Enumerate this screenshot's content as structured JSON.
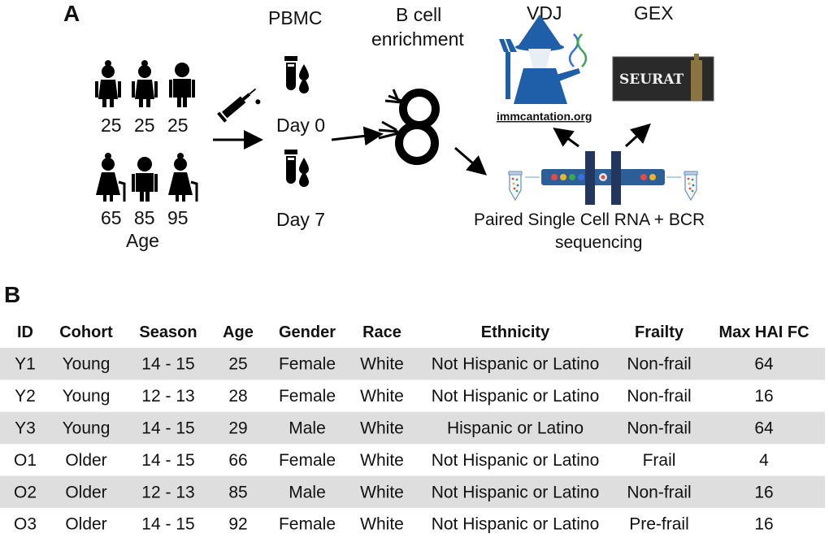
{
  "panel_a": {
    "letter": "A",
    "ages_top": [
      "25",
      "25",
      "25"
    ],
    "ages_bottom": [
      "65",
      "85",
      "95"
    ],
    "age_label": "Age",
    "pbmc_label": "PBMC",
    "day0_label": "Day 0",
    "day7_label": "Day 7",
    "benrich_line1": "B cell",
    "benrich_line2": "enrichment",
    "vdj_label": "VDJ",
    "gex_label": "GEX",
    "immcantation_link": "immcantation.org",
    "seurat_logo_text": "SEURAT",
    "seq_line1": "Paired Single Cell RNA + BCR",
    "seq_line2": "sequencing"
  },
  "panel_b": {
    "letter": "B",
    "headers": [
      "ID",
      "Cohort",
      "Season",
      "Age",
      "Gender",
      "Race",
      "Ethnicity",
      "Frailty",
      "Max HAI FC"
    ],
    "rows": [
      [
        "Y1",
        "Young",
        "14 - 15",
        "25",
        "Female",
        "White",
        "Not Hispanic or Latino",
        "Non-frail",
        "64"
      ],
      [
        "Y2",
        "Young",
        "12 - 13",
        "28",
        "Female",
        "White",
        "Not Hispanic or Latino",
        "Non-frail",
        "16"
      ],
      [
        "Y3",
        "Young",
        "14 - 15",
        "29",
        "Male",
        "White",
        "Hispanic or Latino",
        "Non-frail",
        "64"
      ],
      [
        "O1",
        "Older",
        "14 - 15",
        "66",
        "Female",
        "White",
        "Not Hispanic or Latino",
        "Frail",
        "4"
      ],
      [
        "O2",
        "Older",
        "12 - 13",
        "85",
        "Male",
        "White",
        "Not Hispanic or Latino",
        "Non-frail",
        "16"
      ],
      [
        "O3",
        "Older",
        "14 - 15",
        "92",
        "Female",
        "White",
        "Not Hispanic or Latino",
        "Pre-frail",
        "16"
      ]
    ]
  },
  "colors": {
    "row_shade": "#dedede",
    "wizard_blue": "#1f5ea8",
    "seq_navy": "#22365e",
    "seq_blue": "#2c5f98",
    "seurat_bg": "#2a2a2a"
  }
}
